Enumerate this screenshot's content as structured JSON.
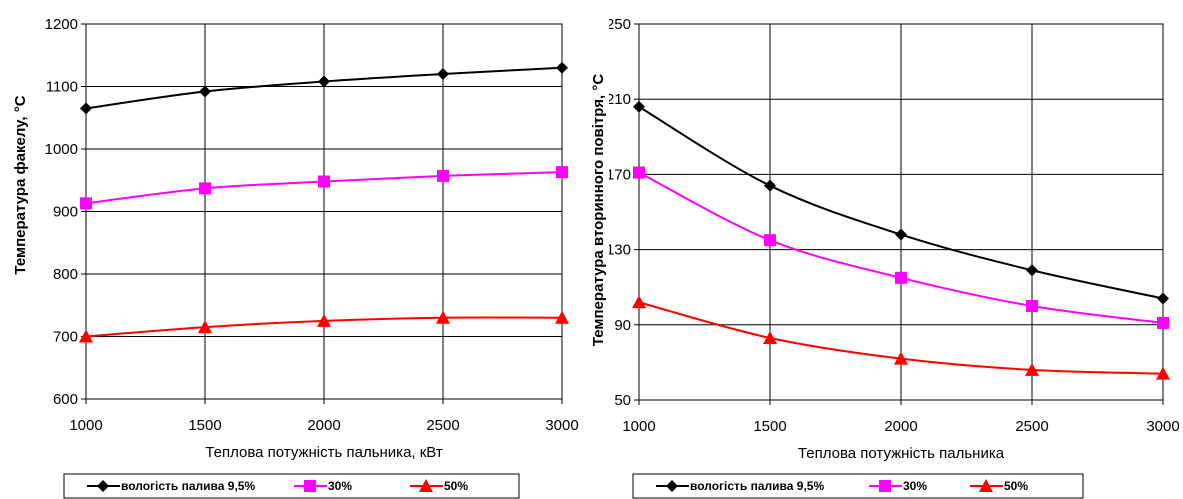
{
  "chart_data": [
    {
      "type": "line",
      "ylabel": "Температура факелу, °C",
      "xlabel": "Теплова потужність пальника, кВт",
      "x": [
        1000,
        1500,
        2000,
        2500,
        3000
      ],
      "xlim": [
        1000,
        3000
      ],
      "ylim": [
        600,
        1200
      ],
      "yticks": [
        600,
        700,
        800,
        900,
        1000,
        1100,
        1200
      ],
      "xticks": [
        1000,
        1500,
        2000,
        2500,
        3000
      ],
      "grid": true,
      "legend_placement": "bottom",
      "series": [
        {
          "name": "вологість палива 9,5%",
          "values": [
            1065,
            1092,
            1108,
            1120,
            1130
          ],
          "color": "#000000",
          "marker": "diamond"
        },
        {
          "name": "30%",
          "values": [
            913,
            937,
            948,
            957,
            963
          ],
          "color": "#ff00ff",
          "marker": "square"
        },
        {
          "name": "50%",
          "values": [
            700,
            715,
            725,
            730,
            730
          ],
          "color": "#ff0000",
          "marker": "triangle"
        }
      ]
    },
    {
      "type": "line",
      "ylabel": "Температура вторинного повітря, °C",
      "xlabel": "Теплова потужність пальника",
      "x": [
        1000,
        1500,
        2000,
        2500,
        3000
      ],
      "xlim": [
        1000,
        3000
      ],
      "ylim": [
        50,
        250
      ],
      "yticks": [
        50,
        90,
        130,
        170,
        210,
        250
      ],
      "xticks": [
        1000,
        1500,
        2000,
        2500,
        3000
      ],
      "grid": true,
      "legend_placement": "bottom",
      "series": [
        {
          "name": "вологість палива 9,5%",
          "values": [
            206,
            164,
            138,
            119,
            104
          ],
          "color": "#000000",
          "marker": "diamond"
        },
        {
          "name": "30%",
          "values": [
            171,
            135,
            115,
            100,
            91
          ],
          "color": "#ff00ff",
          "marker": "square"
        },
        {
          "name": "50%",
          "values": [
            102,
            83,
            72,
            66,
            64
          ],
          "color": "#ff0000",
          "marker": "triangle"
        }
      ]
    }
  ]
}
